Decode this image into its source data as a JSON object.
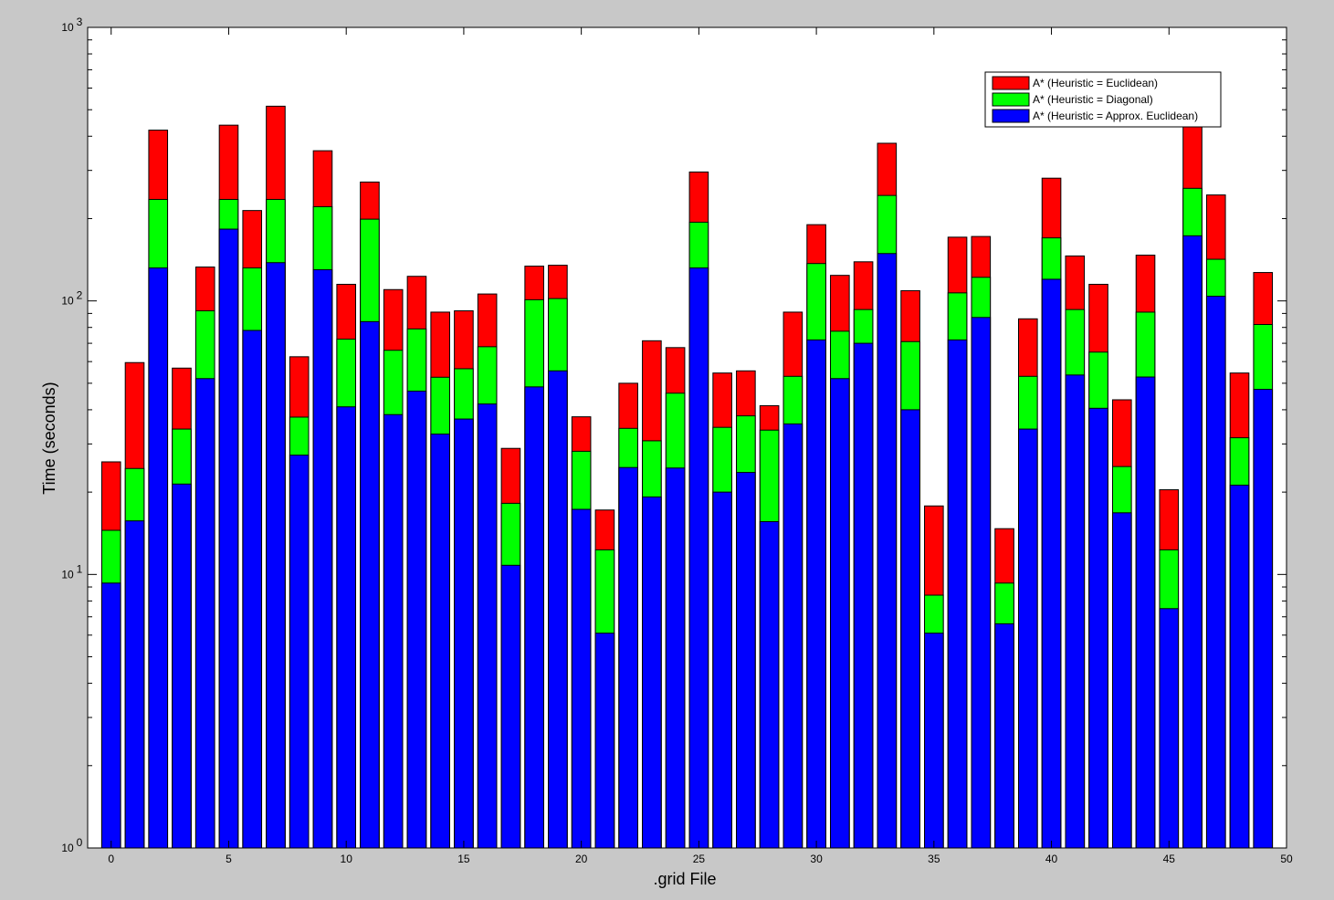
{
  "chart_data": {
    "type": "bar",
    "stacked": true,
    "scale_y": "log",
    "xlabel": ".grid File",
    "ylabel": "Time (seconds)",
    "xlim": [
      -1,
      50
    ],
    "ylim": [
      1,
      1000
    ],
    "x_ticks": [
      0,
      5,
      10,
      15,
      20,
      25,
      30,
      35,
      40,
      45,
      50
    ],
    "y_ticks": [
      {
        "base": "10",
        "exp": "0"
      },
      {
        "base": "10",
        "exp": "1"
      },
      {
        "base": "10",
        "exp": "2"
      },
      {
        "base": "10",
        "exp": "3"
      }
    ],
    "legend_position": "top-right",
    "grid": false,
    "x": [
      0,
      1,
      2,
      3,
      4,
      5,
      6,
      7,
      8,
      9,
      10,
      11,
      12,
      13,
      14,
      15,
      16,
      17,
      18,
      19,
      20,
      21,
      22,
      23,
      24,
      25,
      26,
      27,
      28,
      29,
      30,
      31,
      32,
      33,
      34,
      35,
      36,
      37,
      38,
      39,
      40,
      41,
      42,
      43,
      44,
      45,
      46,
      47,
      48,
      49
    ],
    "series": [
      {
        "name": "A* (Heuristic = Approx. Euclidean)",
        "color": "#0000ff",
        "cumulative": [
          9.3,
          15.7,
          132,
          21.4,
          52,
          183,
          78,
          138,
          27.3,
          130,
          41,
          84,
          38.4,
          46.8,
          32.6,
          37,
          42,
          10.8,
          48.5,
          55.5,
          17.3,
          6.1,
          24.6,
          19.2,
          24.5,
          132,
          20,
          23.6,
          15.6,
          35.5,
          72,
          52,
          70,
          149,
          40,
          6.1,
          72,
          87,
          6.6,
          34,
          120,
          53.6,
          40.5,
          16.8,
          52.7,
          7.5,
          173,
          104,
          21.2,
          47.5
        ]
      },
      {
        "name": "A* (Heuristic = Diagonal)",
        "color": "#00ff00",
        "cumulative": [
          14.5,
          24.4,
          235,
          34,
          92,
          235,
          132,
          235,
          37.6,
          221,
          72.5,
          199,
          66,
          79,
          52.6,
          56.5,
          68,
          18.2,
          101,
          102,
          28.2,
          12.3,
          34.2,
          30.8,
          46,
          194,
          34.5,
          38,
          33.7,
          53,
          137,
          77.5,
          93,
          243,
          71,
          8.4,
          107,
          122,
          9.3,
          53,
          170,
          93,
          65,
          24.8,
          91,
          12.3,
          258,
          142,
          31.6,
          82
        ]
      },
      {
        "name": "A* (Heuristic = Euclidean)",
        "color": "#ff0000",
        "cumulative": [
          25.8,
          59.5,
          421,
          56.8,
          133,
          439,
          214,
          515,
          62.5,
          354,
          115,
          272,
          110,
          123,
          91,
          92,
          106,
          28.9,
          134,
          135,
          37.7,
          17.2,
          50,
          71.5,
          67.5,
          296,
          54.5,
          55.5,
          41.4,
          91,
          190,
          124,
          139,
          377,
          109,
          17.8,
          171,
          172,
          14.7,
          86,
          281,
          146,
          115,
          43.5,
          147,
          20.4,
          468,
          244,
          54.5,
          127
        ]
      }
    ]
  }
}
